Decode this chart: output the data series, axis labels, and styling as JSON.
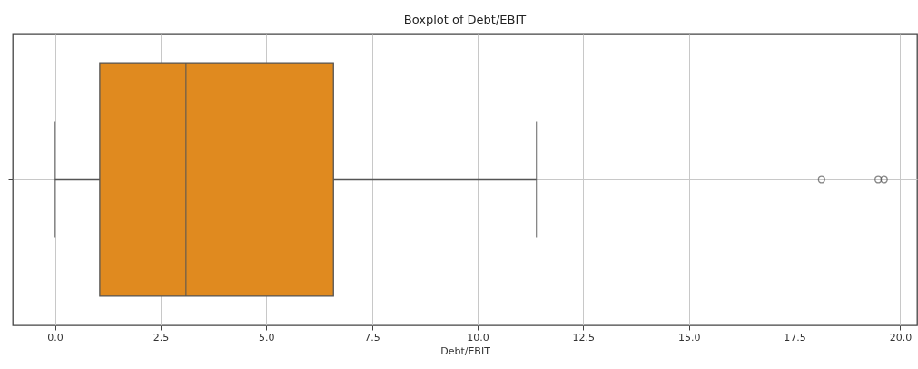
{
  "chart_data": {
    "type": "box",
    "title": "Boxplot of Debt/EBIT",
    "xlabel": "Debt/EBIT",
    "orientation": "horizontal",
    "categories": [
      null
    ],
    "series": [
      {
        "color": "#e08a1f",
        "boxes": [
          {
            "low": 0.0,
            "q1": 1.06,
            "median": 3.1,
            "q3": 6.59,
            "high": 11.39,
            "outliers": [
              18.14,
              19.48,
              19.62
            ]
          }
        ]
      }
    ],
    "xlim": [
      -1.0,
      20.4
    ],
    "xticks": [
      {
        "value": 0,
        "label": "0.0"
      },
      {
        "value": 2.5,
        "label": "2.5"
      },
      {
        "value": 5,
        "label": "5.0"
      },
      {
        "value": 7.5,
        "label": "7.5"
      },
      {
        "value": 10,
        "label": "10.0"
      },
      {
        "value": 12.5,
        "label": "12.5"
      },
      {
        "value": 15,
        "label": "15.0"
      },
      {
        "value": 17.5,
        "label": "17.5"
      },
      {
        "value": 20,
        "label": "20.0"
      }
    ],
    "grid": true
  }
}
